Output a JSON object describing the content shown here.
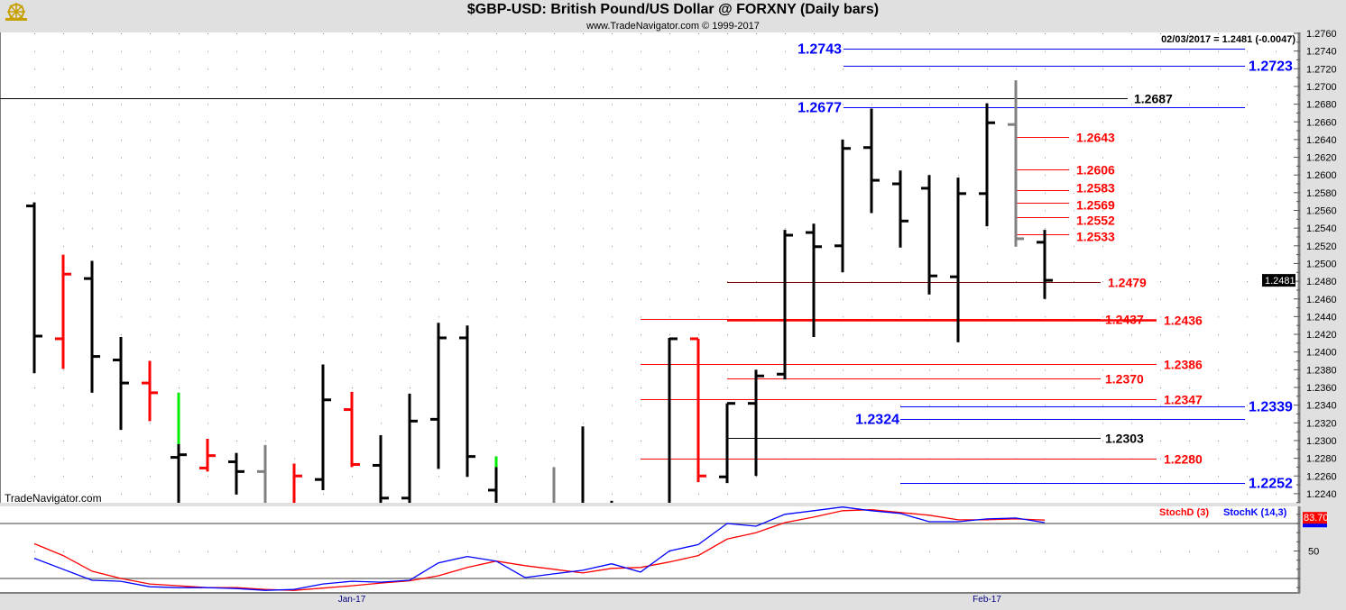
{
  "header": {
    "title": "$GBP-USD:  British Pound/US Dollar @ FORXNY  (Daily bars)",
    "subtitle": "www.TradeNavigator.com © 1999-2017",
    "readout": "02/03/2017 = 1.2481 (-0.0047)",
    "watermark": "TradeNavigator.com"
  },
  "colors": {
    "up": "#000000",
    "down": "#ff0000",
    "neutral": "#808080",
    "accent": "#00ee00",
    "blue": "#0000ff",
    "red": "#ff0000",
    "stochD": "#ff0000",
    "stochK": "#0000ff"
  },
  "chart_data": [
    {
      "type": "ohlc",
      "title": "$GBP-USD: British Pound/US Dollar @ FORXNY (Daily bars)",
      "ylim": [
        1.223,
        1.277
      ],
      "y_ticks": [
        "1.2760",
        "1.2740",
        "1.2720",
        "1.2700",
        "1.2680",
        "1.2660",
        "1.2640",
        "1.2620",
        "1.2600",
        "1.2580",
        "1.2560",
        "1.2540",
        "1.2520",
        "1.2500",
        "1.2480",
        "1.2460",
        "1.2440",
        "1.2420",
        "1.2400",
        "1.2380",
        "1.2360",
        "1.2340",
        "1.2320",
        "1.2300",
        "1.2280",
        "1.2260",
        "1.2240"
      ],
      "last_price_label": "1.2481",
      "x_labels": [
        {
          "bar": 11,
          "label": "Jan-17"
        },
        {
          "bar": 33,
          "label": "Feb-17"
        }
      ],
      "bars": [
        {
          "o": 1.2565,
          "h": 1.2569,
          "l": 1.2376,
          "c": 1.2418,
          "color": "up"
        },
        {
          "o": 1.2415,
          "h": 1.251,
          "l": 1.2381,
          "c": 1.2488,
          "color": "down"
        },
        {
          "o": 1.2483,
          "h": 1.2503,
          "l": 1.2354,
          "c": 1.2395,
          "color": "up"
        },
        {
          "o": 1.2391,
          "h": 1.2417,
          "l": 1.2312,
          "c": 1.2365,
          "color": "up"
        },
        {
          "o": 1.2365,
          "h": 1.239,
          "l": 1.2322,
          "c": 1.2354,
          "color": "down"
        },
        {
          "o": 1.2281,
          "h": 1.2354,
          "l": 1.22,
          "c": 1.2284,
          "color": "up",
          "accent_to": 1.2296
        },
        {
          "o": 1.2269,
          "h": 1.2302,
          "l": 1.2265,
          "c": 1.2283,
          "color": "down"
        },
        {
          "o": 1.2276,
          "h": 1.2286,
          "l": 1.2239,
          "c": 1.2265,
          "color": "up"
        },
        {
          "o": 1.2265,
          "h": 1.2295,
          "l": 1.22,
          "c": null,
          "color": "neutral"
        },
        {
          "o": null,
          "h": 1.2274,
          "l": 1.22,
          "c": 1.226,
          "color": "down"
        },
        {
          "o": 1.2256,
          "h": 1.2386,
          "l": 1.2244,
          "c": 1.2346,
          "color": "up"
        },
        {
          "o": 1.2335,
          "h": 1.2355,
          "l": 1.227,
          "c": 1.2273,
          "color": "down"
        },
        {
          "o": 1.2272,
          "h": 1.2306,
          "l": 1.22,
          "c": 1.2235,
          "color": "up"
        },
        {
          "o": 1.2235,
          "h": 1.2353,
          "l": 1.22,
          "c": 1.2322,
          "color": "up"
        },
        {
          "o": 1.2324,
          "h": 1.2433,
          "l": 1.2268,
          "c": 1.2416,
          "color": "up"
        },
        {
          "o": 1.2416,
          "h": 1.243,
          "l": 1.2259,
          "c": 1.2282,
          "color": "up"
        },
        {
          "o": 1.2244,
          "h": 1.2282,
          "l": 1.22,
          "c": null,
          "color": "up",
          "accent_to": 1.227
        },
        {
          "o": null,
          "h": null,
          "l": null,
          "c": null,
          "color": "up"
        },
        {
          "o": null,
          "h": 1.227,
          "l": 1.22,
          "c": null,
          "color": "neutral"
        },
        {
          "o": null,
          "h": 1.2316,
          "l": 1.22,
          "c": null,
          "color": "up"
        },
        {
          "o": null,
          "h": 1.2232,
          "l": 1.22,
          "c": null,
          "color": "up"
        },
        {
          "o": null,
          "h": null,
          "l": null,
          "c": null,
          "color": "up"
        },
        {
          "o": null,
          "h": 1.2416,
          "l": 1.22,
          "c": 1.2415,
          "color": "up"
        },
        {
          "o": 1.2415,
          "h": 1.2415,
          "l": 1.2253,
          "c": 1.226,
          "color": "down"
        },
        {
          "o": 1.2259,
          "h": 1.2342,
          "l": 1.2252,
          "c": 1.2342,
          "color": "up"
        },
        {
          "o": 1.2342,
          "h": 1.238,
          "l": 1.226,
          "c": 1.2373,
          "color": "up"
        },
        {
          "o": 1.2375,
          "h": 1.2538,
          "l": 1.2369,
          "c": 1.2532,
          "color": "up"
        },
        {
          "o": 1.2535,
          "h": 1.2545,
          "l": 1.2417,
          "c": 1.2519,
          "color": "up"
        },
        {
          "o": 1.252,
          "h": 1.264,
          "l": 1.249,
          "c": 1.263,
          "color": "up"
        },
        {
          "o": 1.2631,
          "h": 1.2675,
          "l": 1.2557,
          "c": 1.2594,
          "color": "up"
        },
        {
          "o": 1.259,
          "h": 1.2605,
          "l": 1.2518,
          "c": 1.2548,
          "color": "up"
        },
        {
          "o": 1.2585,
          "h": 1.26,
          "l": 1.2465,
          "c": 1.2486,
          "color": "up"
        },
        {
          "o": 1.2485,
          "h": 1.2597,
          "l": 1.2411,
          "c": 1.2579,
          "color": "up"
        },
        {
          "o": 1.2579,
          "h": 1.2681,
          "l": 1.2542,
          "c": 1.2659,
          "color": "up"
        },
        {
          "o": 1.2657,
          "h": 1.2707,
          "l": 1.2519,
          "c": 1.2528,
          "color": "neutral"
        },
        {
          "o": 1.2524,
          "h": 1.2538,
          "l": 1.246,
          "c": 1.2481,
          "color": "up"
        }
      ],
      "levels": [
        {
          "price": 1.2743,
          "label": "1.2743",
          "color": "blue"
        },
        {
          "price": 1.2723,
          "label": "1.2723",
          "color": "blue"
        },
        {
          "price": 1.2687,
          "label": "1.2687",
          "color": "black"
        },
        {
          "price": 1.2677,
          "label": "1.2677",
          "color": "blue"
        },
        {
          "price": 1.2643,
          "label": "1.2643",
          "color": "red"
        },
        {
          "price": 1.2606,
          "label": "1.2606",
          "color": "red"
        },
        {
          "price": 1.2583,
          "label": "1.2583",
          "color": "red"
        },
        {
          "price": 1.2569,
          "label": "1.2569",
          "color": "red"
        },
        {
          "price": 1.2552,
          "label": "1.2552",
          "color": "red"
        },
        {
          "price": 1.2533,
          "label": "1.2533",
          "color": "red"
        },
        {
          "price": 1.2479,
          "label": "1.2479",
          "color": "red"
        },
        {
          "price": 1.2437,
          "label": "1.2437",
          "color": "red"
        },
        {
          "price": 1.2436,
          "label": "1.2436",
          "color": "red"
        },
        {
          "price": 1.2386,
          "label": "1.2386",
          "color": "red"
        },
        {
          "price": 1.237,
          "label": "1.2370",
          "color": "red"
        },
        {
          "price": 1.2347,
          "label": "1.2347",
          "color": "red"
        },
        {
          "price": 1.2339,
          "label": "1.2339",
          "color": "blue"
        },
        {
          "price": 1.2324,
          "label": "1.2324",
          "color": "blue"
        },
        {
          "price": 1.2303,
          "label": "1.2303",
          "color": "black"
        },
        {
          "price": 1.228,
          "label": "1.2280",
          "color": "red"
        },
        {
          "price": 1.2252,
          "label": "1.2252",
          "color": "blue"
        }
      ]
    },
    {
      "type": "line",
      "title": "Stochastic",
      "ylim": [
        0,
        100
      ],
      "y_ticks": [
        "50"
      ],
      "reference_lines": [
        20,
        80
      ],
      "last_value_label": "83.70",
      "series": [
        {
          "name": "StochD (3)",
          "color": "stochD",
          "values": [
            58,
            45,
            28,
            20,
            14,
            12,
            10,
            10,
            8,
            7,
            9.5,
            12,
            15,
            17.5,
            23,
            32,
            39,
            34,
            30,
            26,
            31,
            32,
            38,
            45,
            63,
            70,
            81,
            87,
            94,
            95,
            92,
            89,
            84,
            84,
            85,
            83.7
          ]
        },
        {
          "name": "StochK (14,3)",
          "color": "stochK",
          "values": [
            42,
            30,
            18,
            17,
            11,
            10,
            10,
            9,
            7,
            8,
            14,
            17,
            16,
            18,
            37,
            44,
            39,
            21,
            25,
            29,
            36,
            27,
            50,
            57,
            80,
            77,
            90,
            94,
            98,
            94,
            91,
            82,
            82,
            85,
            86,
            81
          ]
        }
      ]
    }
  ]
}
